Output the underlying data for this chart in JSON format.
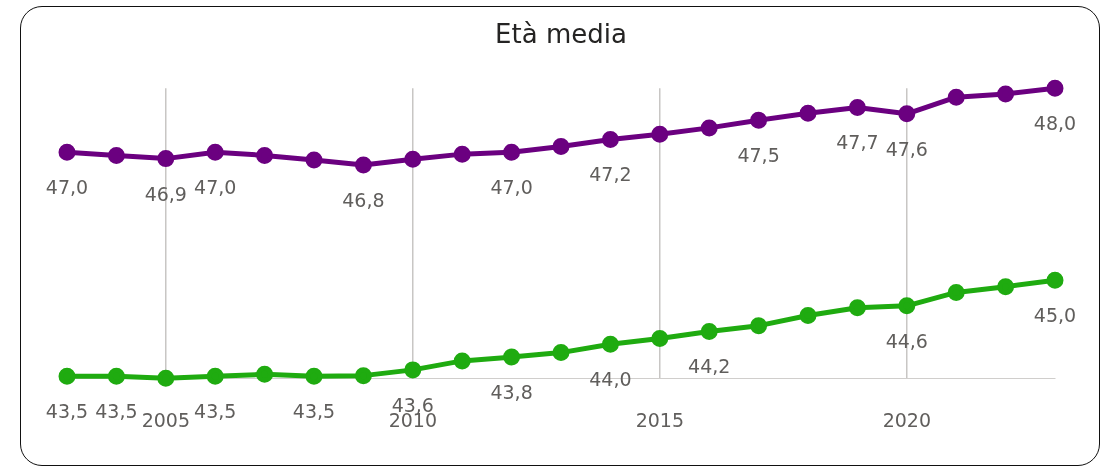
{
  "chart_data": {
    "type": "line",
    "title": "Età media",
    "x": [
      2003,
      2004,
      2005,
      2006,
      2007,
      2008,
      2009,
      2010,
      2011,
      2012,
      2013,
      2014,
      2015,
      2016,
      2017,
      2018,
      2019,
      2020,
      2021,
      2022,
      2023
    ],
    "xlim": [
      2003,
      2023
    ],
    "xticks": [
      2005,
      2010,
      2015,
      2020
    ],
    "grid": "x",
    "legend": false,
    "marker": "circle",
    "line_style": "solid",
    "tick_labels": "x",
    "series": [
      {
        "color": "#6b0080",
        "values": [
          47.0,
          46.95,
          46.9,
          47.0,
          46.95,
          46.88,
          46.8,
          46.89,
          46.97,
          47.0,
          47.09,
          47.2,
          47.28,
          47.38,
          47.5,
          47.61,
          47.7,
          47.6,
          47.86,
          47.91,
          48.0
        ],
        "value_labels": [
          "47,0",
          null,
          "46,9",
          "47,0",
          null,
          null,
          "46,8",
          null,
          null,
          "47,0",
          null,
          "47,2",
          null,
          null,
          "47,5",
          null,
          "47,7",
          "47,6",
          null,
          null,
          "48,0"
        ]
      },
      {
        "color": "#1fab10",
        "values": [
          43.5,
          43.5,
          43.47,
          43.5,
          43.53,
          43.5,
          43.51,
          43.6,
          43.74,
          43.8,
          43.87,
          44.0,
          44.09,
          44.2,
          44.29,
          44.45,
          44.57,
          44.6,
          44.81,
          44.9,
          45.0
        ],
        "value_labels": [
          "43,5",
          "43,5",
          null,
          "43,5",
          null,
          "43,5",
          null,
          "43,6",
          null,
          "43,8",
          null,
          "44,0",
          null,
          "44,2",
          null,
          null,
          null,
          "44,6",
          null,
          null,
          "45,0"
        ]
      }
    ]
  }
}
